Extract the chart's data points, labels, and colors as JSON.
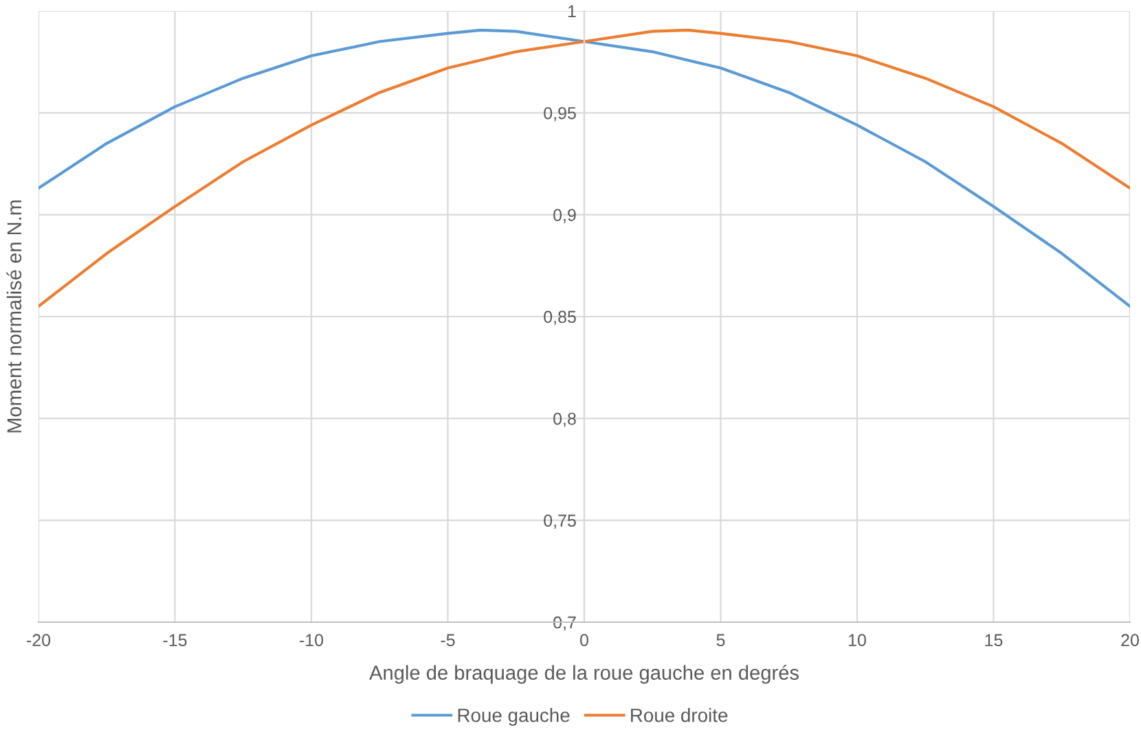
{
  "chart_data": {
    "type": "line",
    "xlabel": "Angle de braquage de la roue gauche en degrés",
    "ylabel": "Moment normalisé en N.m",
    "xlim": [
      -20,
      20
    ],
    "xticks": [
      -20,
      -15,
      -10,
      -5,
      0,
      5,
      10,
      15,
      20
    ],
    "ylim": [
      0.7,
      1
    ],
    "yticks": [
      {
        "value": 0.7,
        "label": "0,7"
      },
      {
        "value": 0.75,
        "label": "0,75"
      },
      {
        "value": 0.8,
        "label": "0,8"
      },
      {
        "value": 0.85,
        "label": "0,85"
      },
      {
        "value": 0.9,
        "label": "0,9"
      },
      {
        "value": 0.95,
        "label": "0,95"
      },
      {
        "value": 1,
        "label": "1"
      }
    ],
    "grid": true,
    "legend": "bottom",
    "marker": "none",
    "line_style": "solid",
    "series": [
      {
        "name": "Roue gauche",
        "color": "#5b9bd5",
        "x": [
          -20,
          -17.5,
          -15,
          -12.5,
          -10,
          -7.5,
          -5,
          -3.8,
          -2.5,
          0,
          2.5,
          5,
          7.5,
          10,
          12.5,
          15,
          17.5,
          20
        ],
        "values": [
          0.913,
          0.935,
          0.953,
          0.967,
          0.978,
          0.985,
          0.989,
          0.9906,
          0.99,
          0.985,
          0.98,
          0.972,
          0.96,
          0.944,
          0.926,
          0.904,
          0.881,
          0.855
        ]
      },
      {
        "name": "Roue droite",
        "color": "#ed7d31",
        "x": [
          -20,
          -17.5,
          -15,
          -12.5,
          -10,
          -7.5,
          -5,
          -2.5,
          0,
          2.5,
          3.8,
          5,
          7.5,
          10,
          12.5,
          15,
          17.5,
          20
        ],
        "values": [
          0.855,
          0.881,
          0.904,
          0.926,
          0.944,
          0.96,
          0.972,
          0.98,
          0.985,
          0.99,
          0.9906,
          0.989,
          0.985,
          0.978,
          0.967,
          0.953,
          0.935,
          0.913
        ]
      }
    ]
  }
}
